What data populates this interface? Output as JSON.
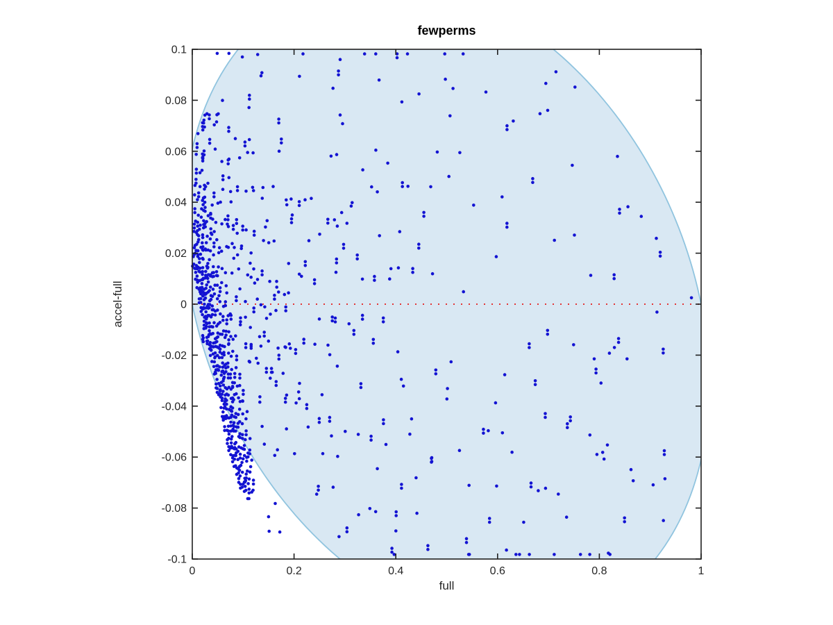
{
  "figure": {
    "background": "#ffffff",
    "axis_color": "#1f1f1f",
    "tick_label_color": "#262626"
  },
  "chart_data": {
    "type": "scatter",
    "title": "fewperms",
    "xlabel": "full",
    "ylabel": "accel-full",
    "xlim": [
      0,
      1
    ],
    "ylim": [
      -0.1,
      0.1
    ],
    "grid": false,
    "legend": null,
    "xticks": {
      "values": [
        0,
        0.2,
        0.4,
        0.6,
        0.8,
        1
      ],
      "labels": [
        "0",
        "0.2",
        "0.4",
        "0.6",
        "0.8",
        "1"
      ]
    },
    "yticks": {
      "values": [
        0.1,
        0.08,
        0.06,
        0.04,
        0.02,
        0,
        -0.02,
        -0.04,
        -0.06,
        -0.08,
        -0.1
      ],
      "labels": [
        "0.1",
        "0.08",
        "0.06",
        "0.04",
        "0.02",
        "0",
        "-0.02",
        "-0.04",
        "-0.06",
        "-0.08",
        "-0.1"
      ]
    },
    "marker": {
      "shape": "dot",
      "color": "#1313d2",
      "radius": 2.3
    },
    "zero_line": {
      "y": 0,
      "color": "#e33333",
      "style": "dotted",
      "width": 2,
      "dash": [
        2,
        9
      ]
    },
    "region": {
      "shape": "tilted-ellipse",
      "description": "significance envelope: x = cx + a*cos(t) - shear*sin(t), y = cy + b*sin(t)",
      "cx": 0.5,
      "cy": 0,
      "a": 0.5,
      "b": 0.1274,
      "shear": 0.1274,
      "boundary_crossings": {
        "left_edge_y": [
          0,
          0.061
        ],
        "right_edge_y": [
          -0.058,
          0
        ],
        "top_edge_x": [
          0.09,
          0.704
        ],
        "bottom_edge_x": [
          0.291,
          0.907
        ]
      },
      "fill": "#d9e8f3",
      "stroke": "#90c4df",
      "stroke_width": 1.8
    },
    "streaks_note": "dense diagonal streaks of points with slope -1 (constant accel value a, y = a - x)",
    "streaks_format": [
      "accel",
      "x_start",
      "x_end",
      "n_points"
    ],
    "streaks": [
      [
        0.016,
        0.002,
        0.075,
        21
      ],
      [
        0.0185,
        0.002,
        0.082,
        23
      ],
      [
        0.021,
        0.003,
        0.088,
        24
      ],
      [
        0.0235,
        0.003,
        0.094,
        26
      ],
      [
        0.026,
        0.003,
        0.098,
        26
      ],
      [
        0.029,
        0.004,
        0.102,
        27
      ],
      [
        0.032,
        0.004,
        0.106,
        28
      ],
      [
        0.0355,
        0.004,
        0.11,
        28
      ],
      [
        0.039,
        0.005,
        0.113,
        27
      ],
      [
        0.043,
        0.005,
        0.116,
        26
      ],
      [
        0.047,
        0.006,
        0.118,
        24
      ],
      [
        0.0515,
        0.006,
        0.12,
        22
      ],
      [
        0.056,
        0.007,
        0.118,
        20
      ],
      [
        0.061,
        0.008,
        0.112,
        17
      ],
      [
        0.0665,
        0.009,
        0.1,
        14
      ],
      [
        0.072,
        0.01,
        0.085,
        10
      ],
      [
        0.078,
        0.012,
        0.065,
        7
      ],
      [
        0.09,
        0.05,
        0.105,
        7
      ],
      [
        0.105,
        0.06,
        0.125,
        7
      ],
      [
        0.12,
        0.075,
        0.145,
        7
      ],
      [
        0.135,
        0.09,
        0.165,
        6
      ],
      [
        0.15,
        0.105,
        0.185,
        6
      ],
      [
        0.165,
        0.12,
        0.205,
        5
      ],
      [
        0.185,
        0.14,
        0.225,
        5
      ],
      [
        0.205,
        0.16,
        0.25,
        4
      ],
      [
        0.225,
        0.185,
        0.27,
        4
      ],
      [
        0.25,
        0.21,
        0.3,
        4
      ],
      [
        0.275,
        0.235,
        0.325,
        3
      ],
      [
        0.3,
        0.265,
        0.35,
        3
      ],
      [
        0.33,
        0.295,
        0.375,
        3
      ],
      [
        0.1,
        0.07,
        0.115,
        5
      ],
      [
        0.13,
        0.1,
        0.155,
        5
      ],
      [
        0.175,
        0.15,
        0.21,
        4
      ]
    ],
    "random_cloud": {
      "note": "sparse unlabeled scatter filling the envelope, denser toward x=0",
      "seed": 7,
      "n": 330,
      "x_min": 0.02,
      "x_max": 0.95,
      "x_power": 2.0,
      "twin_prob": 0.22,
      "twin_dy": -0.0015
    },
    "extra_points": [
      [
        0.981,
        0.0025
      ],
      [
        0.049,
        0.0984
      ],
      [
        0.072,
        0.0984
      ],
      [
        0.061,
        -0.0455
      ],
      [
        0.059,
        -0.0441
      ],
      [
        0.104,
        -0.0715
      ],
      [
        0.109,
        -0.0763
      ],
      [
        0.151,
        -0.0891
      ],
      [
        0.15,
        -0.0834
      ],
      [
        0.163,
        -0.0782
      ],
      [
        0.172,
        -0.0894
      ]
    ]
  }
}
